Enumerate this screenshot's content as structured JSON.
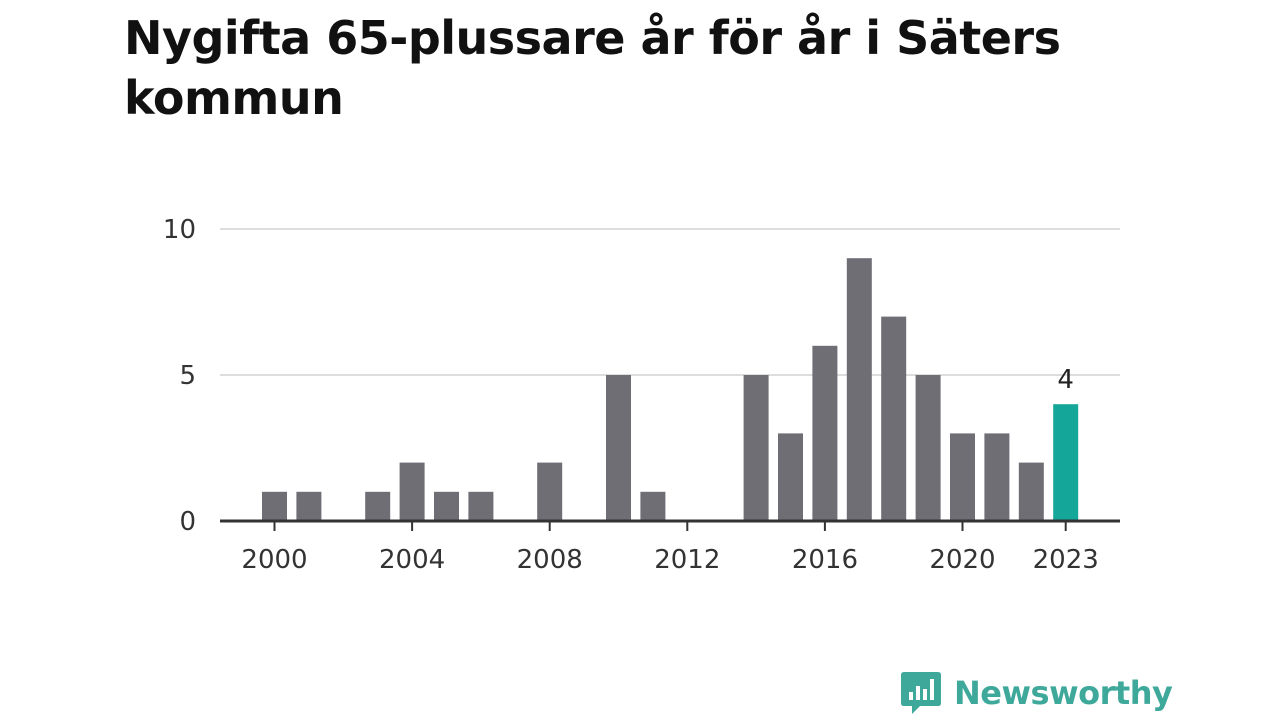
{
  "title": "Nygifta 65-plussare år för år i Säters kommun",
  "brand": {
    "name": "Newsworthy",
    "color": "#3ea89a"
  },
  "colors": {
    "bar": "#6f6e75",
    "highlight": "#14a699",
    "grid": "#dddddd",
    "axis": "#333333",
    "text": "#333333"
  },
  "chart_data": {
    "type": "bar",
    "title": "Nygifta 65-plussare år för år i Säters kommun",
    "xlabel": "",
    "ylabel": "",
    "x": [
      2000,
      2001,
      2002,
      2003,
      2004,
      2005,
      2006,
      2007,
      2008,
      2009,
      2010,
      2011,
      2012,
      2013,
      2014,
      2015,
      2016,
      2017,
      2018,
      2019,
      2020,
      2021,
      2022,
      2023
    ],
    "values": [
      1,
      1,
      0,
      1,
      2,
      1,
      1,
      0,
      2,
      0,
      5,
      1,
      0,
      0,
      5,
      3,
      6,
      9,
      7,
      5,
      3,
      3,
      2,
      4
    ],
    "xticks": [
      "2000",
      "2004",
      "2008",
      "2012",
      "2016",
      "2020",
      "2023"
    ],
    "yticks": [
      "0",
      "5",
      "10"
    ],
    "ylim": [
      0,
      10
    ],
    "grid": true,
    "highlight": {
      "x": 2023,
      "label": "4"
    }
  }
}
